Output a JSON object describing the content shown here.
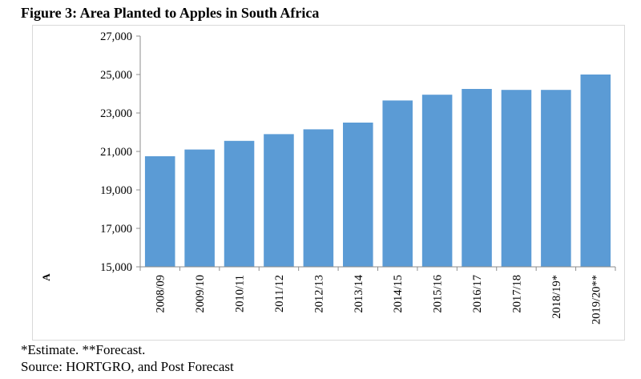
{
  "title": "Figure 3: Area Planted to Apples in South Africa",
  "notes": {
    "line1": "*Estimate. **Forecast.",
    "line2": "Source: HORTGRO, and Post Forecast"
  },
  "chart_data": {
    "type": "bar",
    "title": "Figure 3: Area Planted to Apples in South Africa",
    "xlabel": "",
    "ylabel": "A",
    "categories": [
      "2008/09",
      "2009/10",
      "2010/11",
      "2011/12",
      "2012/13",
      "2013/14",
      "2014/15",
      "2015/16",
      "2016/17",
      "2017/18",
      "2018/19*",
      "2019/20**"
    ],
    "values": [
      20750,
      21100,
      21550,
      21900,
      22150,
      22500,
      23650,
      23950,
      24250,
      24200,
      24200,
      25000
    ],
    "ylim": [
      15000,
      27000
    ],
    "yticks": [
      15000,
      17000,
      19000,
      21000,
      23000,
      25000,
      27000
    ],
    "ytick_labels": [
      "15,000",
      "17,000",
      "19,000",
      "21,000",
      "23,000",
      "25,000",
      "27,000"
    ],
    "bar_color": "#5b9bd5",
    "grid": false,
    "legend": "none"
  }
}
